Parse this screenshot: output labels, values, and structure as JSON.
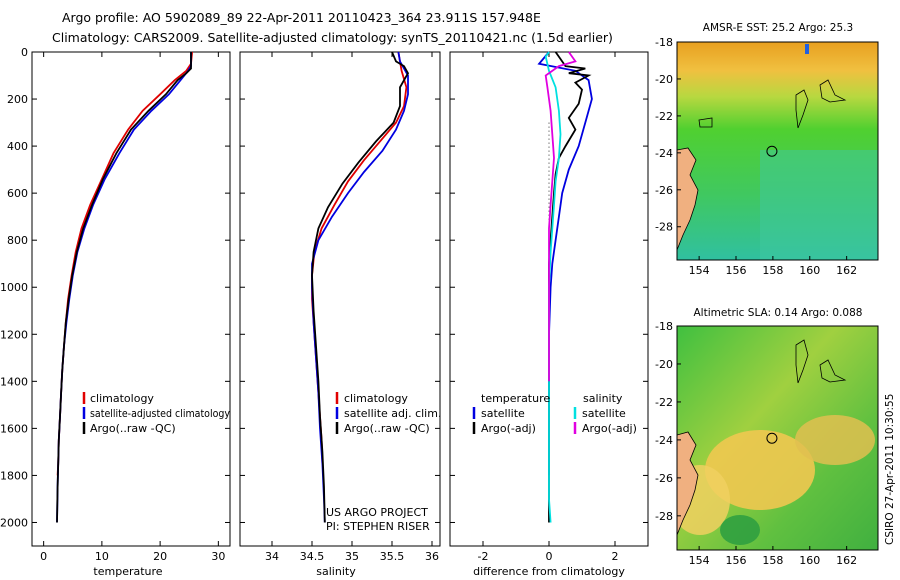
{
  "header": {
    "line1": "Argo profile: AO 5902089_89 22-Apr-2011 20110423_364 23.911S 157.948E",
    "line2": "Climatology: CARS2009. Satellite-adjusted climatology: synTS_20110421.nc (1.5d earlier)"
  },
  "colors": {
    "climatology": "#e00000",
    "satellite": "#0000e0",
    "argo": "#000000",
    "sat_sal": "#00e0e0",
    "argo_sal": "#e000e0"
  },
  "chart_data": [
    {
      "type": "line",
      "name": "temperature",
      "xlabel": "temperature",
      "xlim": [
        -2,
        32
      ],
      "ylim": [
        0,
        2100
      ],
      "xticks": [
        0,
        10,
        20,
        30
      ],
      "yticks": [
        0,
        200,
        400,
        600,
        800,
        1000,
        1200,
        1400,
        1600,
        1800,
        2000
      ],
      "legend": {
        "placement": "lower-middle",
        "items": [
          "climatology",
          "satellite-adjusted climatology",
          "Argo(..raw -QC)"
        ]
      },
      "series": [
        {
          "name": "climatology",
          "color": "#e00000",
          "points": [
            [
              25.5,
              0
            ],
            [
              25.3,
              50
            ],
            [
              24.5,
              80
            ],
            [
              22.5,
              120
            ],
            [
              20,
              180
            ],
            [
              17,
              250
            ],
            [
              14.5,
              330
            ],
            [
              12,
              430
            ],
            [
              10,
              540
            ],
            [
              8,
              650
            ],
            [
              6.5,
              750
            ],
            [
              5.5,
              850
            ],
            [
              4.8,
              950
            ],
            [
              4.2,
              1050
            ],
            [
              3.8,
              1150
            ],
            [
              3.5,
              1250
            ],
            [
              3.2,
              1350
            ],
            [
              3,
              1450
            ],
            [
              2.8,
              1550
            ],
            [
              2.6,
              1650
            ],
            [
              2.5,
              1750
            ],
            [
              2.4,
              1800
            ]
          ]
        },
        {
          "name": "satellite",
          "color": "#0000e0",
          "points": [
            [
              25.3,
              0
            ],
            [
              25.3,
              60
            ],
            [
              24.8,
              80
            ],
            [
              23.5,
              120
            ],
            [
              21.5,
              180
            ],
            [
              18.5,
              250
            ],
            [
              15.5,
              330
            ],
            [
              13,
              430
            ],
            [
              10.5,
              540
            ],
            [
              8.5,
              650
            ],
            [
              7,
              750
            ],
            [
              5.8,
              850
            ],
            [
              5,
              950
            ],
            [
              4.4,
              1050
            ],
            [
              3.9,
              1150
            ],
            [
              3.5,
              1250
            ],
            [
              3.2,
              1350
            ],
            [
              3,
              1450
            ],
            [
              2.8,
              1550
            ],
            [
              2.6,
              1650
            ],
            [
              2.5,
              1750
            ],
            [
              2.4,
              1850
            ],
            [
              2.3,
              2000
            ]
          ]
        },
        {
          "name": "argo",
          "color": "#000000",
          "points": [
            [
              25.3,
              0
            ],
            [
              25.3,
              70
            ],
            [
              24.5,
              90
            ],
            [
              23,
              120
            ],
            [
              21,
              180
            ],
            [
              18,
              250
            ],
            [
              15,
              330
            ],
            [
              12.5,
              430
            ],
            [
              10.2,
              540
            ],
            [
              8.3,
              650
            ],
            [
              6.8,
              750
            ],
            [
              5.7,
              850
            ],
            [
              4.9,
              950
            ],
            [
              4.3,
              1050
            ],
            [
              3.8,
              1150
            ],
            [
              3.5,
              1250
            ],
            [
              3.2,
              1350
            ],
            [
              3,
              1450
            ],
            [
              2.8,
              1550
            ],
            [
              2.6,
              1650
            ],
            [
              2.5,
              1750
            ],
            [
              2.4,
              1850
            ],
            [
              2.3,
              2000
            ]
          ]
        }
      ]
    },
    {
      "type": "line",
      "name": "salinity",
      "xlabel": "salinity",
      "xlim": [
        33.6,
        36.1
      ],
      "ylim": [
        0,
        2100
      ],
      "xticks": [
        34,
        34.5,
        35,
        35.5,
        36
      ],
      "legend": {
        "placement": "lower-middle",
        "items": [
          "climatology",
          "satellite adj. clim.",
          "Argo(..raw -QC)"
        ]
      },
      "annotations": [
        "US ARGO PROJECT",
        "PI: STEPHEN RISER"
      ],
      "series": [
        {
          "name": "climatology",
          "color": "#e00000",
          "points": [
            [
              35.58,
              0
            ],
            [
              35.62,
              80
            ],
            [
              35.68,
              150
            ],
            [
              35.65,
              230
            ],
            [
              35.55,
              300
            ],
            [
              35.35,
              380
            ],
            [
              35.15,
              460
            ],
            [
              34.95,
              550
            ],
            [
              34.78,
              650
            ],
            [
              34.62,
              750
            ],
            [
              34.53,
              850
            ],
            [
              34.5,
              950
            ],
            [
              34.5,
              1050
            ],
            [
              34.52,
              1150
            ],
            [
              34.54,
              1250
            ],
            [
              34.56,
              1350
            ],
            [
              34.58,
              1450
            ],
            [
              34.6,
              1550
            ],
            [
              34.62,
              1650
            ],
            [
              34.63,
              1750
            ]
          ]
        },
        {
          "name": "satellite",
          "color": "#0000e0",
          "points": [
            [
              35.58,
              0
            ],
            [
              35.6,
              40
            ],
            [
              35.7,
              100
            ],
            [
              35.7,
              180
            ],
            [
              35.65,
              250
            ],
            [
              35.55,
              330
            ],
            [
              35.38,
              420
            ],
            [
              35.15,
              510
            ],
            [
              34.95,
              600
            ],
            [
              34.75,
              700
            ],
            [
              34.58,
              800
            ],
            [
              34.5,
              900
            ],
            [
              34.5,
              1000
            ],
            [
              34.52,
              1150
            ],
            [
              34.55,
              1300
            ],
            [
              34.58,
              1450
            ],
            [
              34.6,
              1600
            ],
            [
              34.63,
              1750
            ],
            [
              34.65,
              1900
            ],
            [
              34.66,
              2000
            ]
          ]
        },
        {
          "name": "argo",
          "color": "#000000",
          "points": [
            [
              35.5,
              0
            ],
            [
              35.55,
              40
            ],
            [
              35.65,
              60
            ],
            [
              35.7,
              90
            ],
            [
              35.6,
              150
            ],
            [
              35.6,
              230
            ],
            [
              35.52,
              300
            ],
            [
              35.3,
              380
            ],
            [
              35.08,
              470
            ],
            [
              34.88,
              560
            ],
            [
              34.7,
              660
            ],
            [
              34.58,
              750
            ],
            [
              34.52,
              850
            ],
            [
              34.5,
              950
            ],
            [
              34.52,
              1100
            ],
            [
              34.55,
              1250
            ],
            [
              34.58,
              1400
            ],
            [
              34.6,
              1550
            ],
            [
              34.63,
              1700
            ],
            [
              34.65,
              1850
            ],
            [
              34.66,
              2000
            ]
          ]
        }
      ]
    },
    {
      "type": "line",
      "name": "difference",
      "xlabel": "difference from climatology",
      "xlim": [
        -3,
        3
      ],
      "xticks": [
        -2,
        0,
        2
      ],
      "legend": {
        "placement": "lower-middle",
        "headers": [
          "temperature",
          "salinity"
        ],
        "items": [
          "satellite",
          "Argo(-adj)",
          "satellite",
          "Argo(-adj)"
        ]
      },
      "series": [
        {
          "name": "temperature satellite",
          "color": "#0000e0",
          "points": [
            [
              0,
              0
            ],
            [
              -0.3,
              50
            ],
            [
              0.8,
              80
            ],
            [
              1.2,
              120
            ],
            [
              1.3,
              200
            ],
            [
              1.1,
              300
            ],
            [
              0.9,
              400
            ],
            [
              0.6,
              500
            ],
            [
              0.4,
              600
            ],
            [
              0.3,
              700
            ],
            [
              0.2,
              800
            ],
            [
              0.1,
              900
            ],
            [
              0.05,
              1000
            ],
            [
              0,
              1200
            ],
            [
              0,
              1500
            ],
            [
              0,
              1800
            ]
          ]
        },
        {
          "name": "temperature argo",
          "color": "#000000",
          "points": [
            [
              0.2,
              0
            ],
            [
              0.5,
              60
            ],
            [
              1.1,
              70
            ],
            [
              0.6,
              90
            ],
            [
              1.2,
              100
            ],
            [
              0.8,
              130
            ],
            [
              1.0,
              160
            ],
            [
              0.9,
              220
            ],
            [
              0.6,
              280
            ],
            [
              0.8,
              330
            ],
            [
              0.5,
              400
            ],
            [
              0.3,
              450
            ],
            [
              0.2,
              520
            ],
            [
              0.15,
              600
            ],
            [
              0.1,
              700
            ],
            [
              0.05,
              800
            ],
            [
              0,
              900
            ],
            [
              0,
              1200
            ],
            [
              0,
              1500
            ],
            [
              0,
              2000
            ]
          ]
        },
        {
          "name": "salinity satellite",
          "color": "#00e0e0",
          "points": [
            [
              0,
              0
            ],
            [
              -0.1,
              20
            ],
            [
              0,
              80
            ],
            [
              0.2,
              150
            ],
            [
              0.3,
              250
            ],
            [
              0.35,
              350
            ],
            [
              0.3,
              450
            ],
            [
              0.2,
              550
            ],
            [
              0.15,
              650
            ],
            [
              0.1,
              750
            ],
            [
              0.05,
              850
            ],
            [
              0,
              1000
            ],
            [
              0,
              1300
            ],
            [
              0,
              1600
            ],
            [
              0,
              1900
            ],
            [
              0.05,
              2000
            ]
          ]
        },
        {
          "name": "salinity argo",
          "color": "#e000e0",
          "points": [
            [
              0.6,
              0
            ],
            [
              0.8,
              40
            ],
            [
              0.3,
              60
            ],
            [
              -0.1,
              100
            ],
            [
              -0.05,
              150
            ],
            [
              0.05,
              250
            ],
            [
              0.1,
              350
            ],
            [
              0.15,
              450
            ],
            [
              0.1,
              550
            ],
            [
              0.05,
              650
            ],
            [
              0,
              750
            ],
            [
              0,
              850
            ],
            [
              0,
              1000
            ],
            [
              0,
              1200
            ],
            [
              0,
              1400
            ]
          ]
        }
      ]
    },
    {
      "type": "heatmap",
      "name": "sst-map",
      "title": "AMSR-E SST: 25.2  Argo: 25.3",
      "xlim": [
        152.8,
        163.7
      ],
      "ylim": [
        -29.8,
        -18
      ],
      "xticks": [
        154,
        156,
        158,
        160,
        162
      ],
      "yticks": [
        -18,
        -20,
        -22,
        -24,
        -26,
        -28
      ],
      "marker": {
        "lon": 157.948,
        "lat": -23.911
      }
    },
    {
      "type": "heatmap",
      "name": "sla-map",
      "title": "Altimetric SLA: 0.14  Argo: 0.088",
      "xlim": [
        152.8,
        163.7
      ],
      "ylim": [
        -29.8,
        -18
      ],
      "xticks": [
        154,
        156,
        158,
        160,
        162
      ],
      "yticks": [
        -18,
        -20,
        -22,
        -24,
        -26,
        -28
      ],
      "marker": {
        "lon": 157.948,
        "lat": -23.911
      }
    }
  ],
  "footer": {
    "credit": "CSIRO 27-Apr-2011 10:30:55"
  }
}
